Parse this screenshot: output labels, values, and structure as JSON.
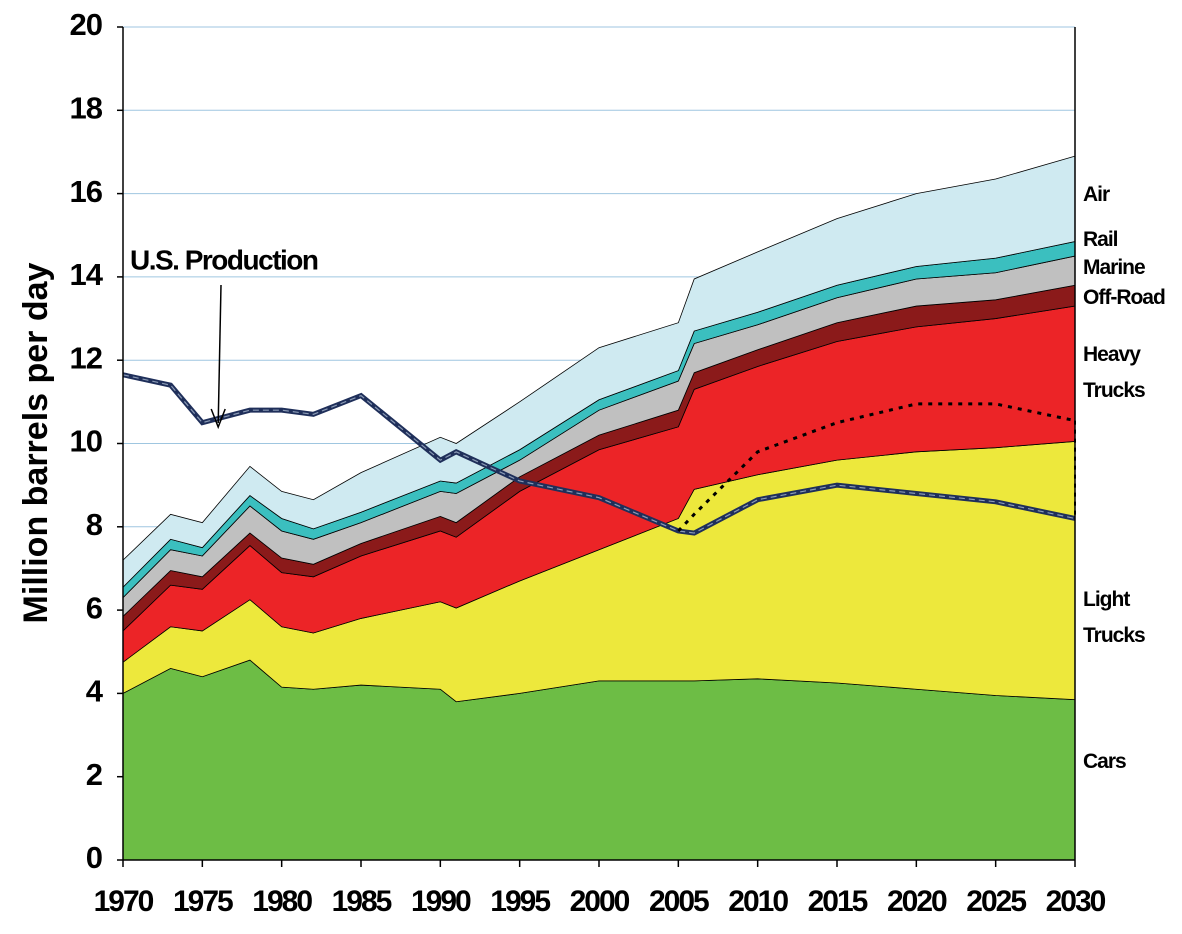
{
  "chart_data": {
    "type": "stacked_area",
    "y_axis_label": "Million barrels per day",
    "x": [
      1970,
      1973,
      1975,
      1978,
      1980,
      1982,
      1985,
      1990,
      1991,
      1995,
      2000,
      2005,
      2006,
      2010,
      2015,
      2020,
      2025,
      2030
    ],
    "xlim": [
      1970,
      2030
    ],
    "xticks": [
      1970,
      1975,
      1980,
      1985,
      1990,
      1995,
      2000,
      2005,
      2010,
      2015,
      2020,
      2025,
      2030
    ],
    "ylim": [
      0,
      20
    ],
    "yticks": [
      0,
      2,
      4,
      6,
      8,
      10,
      12,
      14,
      16,
      18,
      20
    ],
    "grid": true,
    "series": [
      {
        "name": "Cars",
        "color": "#6dbd45",
        "values": [
          4.0,
          4.6,
          4.4,
          4.8,
          4.15,
          4.1,
          4.2,
          4.1,
          3.8,
          4.0,
          4.3,
          4.3,
          4.3,
          4.35,
          4.25,
          4.1,
          3.95,
          3.85
        ]
      },
      {
        "name": "Light Trucks",
        "color": "#ede83c",
        "values": [
          0.75,
          1.0,
          1.1,
          1.45,
          1.45,
          1.35,
          1.6,
          2.1,
          2.25,
          2.7,
          3.15,
          3.9,
          4.6,
          4.9,
          5.35,
          5.7,
          5.95,
          6.2
        ]
      },
      {
        "name": "Heavy Trucks",
        "color": "#ec2427",
        "values": [
          0.75,
          1.0,
          1.0,
          1.3,
          1.3,
          1.35,
          1.5,
          1.7,
          1.7,
          2.15,
          2.4,
          2.2,
          2.4,
          2.6,
          2.85,
          3.0,
          3.1,
          3.25
        ]
      },
      {
        "name": "Off-Road",
        "color": "#8b1a1a",
        "values": [
          0.35,
          0.35,
          0.3,
          0.3,
          0.35,
          0.3,
          0.3,
          0.35,
          0.35,
          0.35,
          0.35,
          0.4,
          0.4,
          0.4,
          0.45,
          0.5,
          0.45,
          0.5
        ]
      },
      {
        "name": "Marine",
        "color": "#c0c0c0",
        "values": [
          0.45,
          0.5,
          0.5,
          0.65,
          0.65,
          0.6,
          0.5,
          0.6,
          0.7,
          0.4,
          0.6,
          0.7,
          0.7,
          0.6,
          0.6,
          0.65,
          0.65,
          0.7
        ]
      },
      {
        "name": "Rail",
        "color": "#3bbfbf",
        "values": [
          0.25,
          0.25,
          0.2,
          0.25,
          0.3,
          0.25,
          0.25,
          0.25,
          0.25,
          0.25,
          0.25,
          0.25,
          0.3,
          0.3,
          0.3,
          0.3,
          0.35,
          0.35
        ]
      },
      {
        "name": "Air",
        "color": "#cfeaf1",
        "values": [
          0.65,
          0.6,
          0.6,
          0.7,
          0.65,
          0.7,
          0.95,
          1.05,
          0.95,
          1.15,
          1.25,
          1.15,
          1.25,
          1.45,
          1.6,
          1.75,
          1.9,
          2.05
        ]
      }
    ],
    "lines": [
      {
        "color": "#1f2f5a",
        "style": "solid",
        "values": [
          11.65,
          11.4,
          10.5,
          10.8,
          10.8,
          10.7,
          11.15,
          9.6,
          9.8,
          9.1,
          8.7,
          7.9,
          7.85,
          8.65,
          9.0,
          8.8,
          8.6,
          8.2
        ]
      },
      {
        "color": "#000000",
        "style": "dotted",
        "values": [
          null,
          null,
          null,
          null,
          null,
          null,
          null,
          null,
          null,
          null,
          null,
          7.9,
          8.3,
          9.8,
          10.5,
          10.95,
          10.95,
          10.55
        ]
      }
    ],
    "annotation": {
      "text": "U.S. Production",
      "x": 1976,
      "y": 10.3
    }
  }
}
